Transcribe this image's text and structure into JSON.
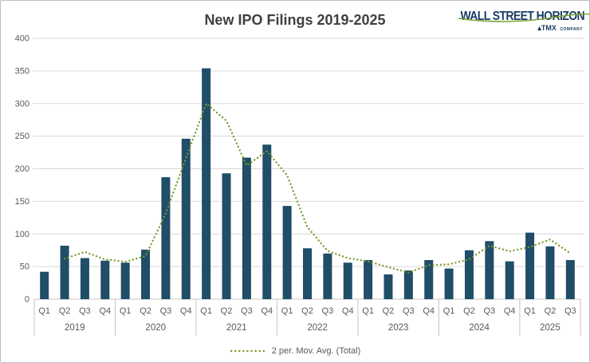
{
  "header": {
    "title": "New IPO Filings 2019-2025"
  },
  "logo": {
    "brand": "WALL STREET HORIZON",
    "tagline_brand": "▴TMX",
    "tagline_suffix": "COMPANY"
  },
  "chart_data": {
    "type": "bar",
    "title": "New IPO Filings 2019-2025",
    "year_groups": [
      {
        "year": "2019",
        "quarters": [
          "Q1",
          "Q2",
          "Q3",
          "Q4"
        ]
      },
      {
        "year": "2020",
        "quarters": [
          "Q1",
          "Q2",
          "Q3",
          "Q4"
        ]
      },
      {
        "year": "2021",
        "quarters": [
          "Q1",
          "Q2",
          "Q3",
          "Q4"
        ]
      },
      {
        "year": "2022",
        "quarters": [
          "Q1",
          "Q2",
          "Q3",
          "Q4"
        ]
      },
      {
        "year": "2023",
        "quarters": [
          "Q1",
          "Q2",
          "Q3",
          "Q4"
        ]
      },
      {
        "year": "2024",
        "quarters": [
          "Q1",
          "Q2",
          "Q3",
          "Q4"
        ]
      },
      {
        "year": "2025",
        "quarters": [
          "Q1",
          "Q2",
          "Q3"
        ]
      }
    ],
    "values": [
      42,
      82,
      63,
      59,
      56,
      76,
      187,
      246,
      354,
      193,
      217,
      237,
      143,
      78,
      70,
      56,
      60,
      38,
      44,
      60,
      47,
      75,
      89,
      58,
      102,
      81,
      60
    ],
    "ylim": [
      0,
      400
    ],
    "ytick_step": 50,
    "grid": true,
    "legend_position": "bottom",
    "legend_label": "2 per. Mov. Avg. (Total)",
    "moving_average_period": 2,
    "colors": {
      "bar": "#204D68",
      "mov_avg": "#7A9A28",
      "grid": "#D9D9D9",
      "axis_line": "#C6C6C6",
      "axis_text": "#595959",
      "title": "#404040",
      "logo_navy": "#1B3C64",
      "logo_green": "#7CA338"
    }
  }
}
